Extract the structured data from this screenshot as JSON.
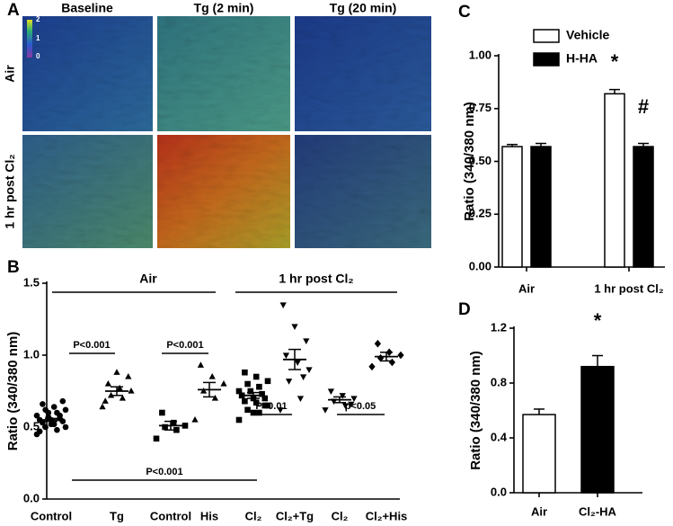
{
  "panel_a": {
    "label": "A",
    "columns": [
      "Baseline",
      "Tg (2 min)",
      "Tg (20 min)"
    ],
    "rows": [
      "Air",
      "1 hr post Cl₂"
    ],
    "colorbar_ticks": [
      2,
      1,
      0
    ]
  },
  "chart_data": [
    {
      "type": "scatter",
      "panel": "B",
      "ylabel": "Ratio (340/380 nm)",
      "categories": [
        "Control",
        "Tg",
        "Control",
        "His",
        "Cl₂",
        "Cl₂+Tg",
        "Cl₂",
        "Cl₂+His"
      ],
      "markers": [
        "circle",
        "triangle",
        "square",
        "triangle",
        "square",
        "triangle-down",
        "triangle-down",
        "diamond"
      ],
      "color": "#000000",
      "points": [
        [
          0.45,
          0.48,
          0.5,
          0.5,
          0.52,
          0.53,
          0.54,
          0.55,
          0.55,
          0.56,
          0.57,
          0.58,
          0.6,
          0.62,
          0.62,
          0.64,
          0.66,
          0.68,
          0.52,
          0.47,
          0.58,
          0.6
        ],
        [
          0.64,
          0.7,
          0.72,
          0.75,
          0.77,
          0.8,
          0.85,
          0.88,
          0.68
        ],
        [
          0.42,
          0.48,
          0.5,
          0.51,
          0.53,
          0.6
        ],
        [
          0.55,
          0.7,
          0.75,
          0.8,
          0.85,
          0.93
        ],
        [
          0.55,
          0.6,
          0.62,
          0.65,
          0.67,
          0.68,
          0.7,
          0.7,
          0.72,
          0.73,
          0.75,
          0.75,
          0.78,
          0.8,
          0.82,
          0.85,
          0.88,
          0.65,
          0.6,
          0.72
        ],
        [
          0.62,
          0.7,
          0.82,
          0.9,
          0.95,
          1.0,
          1.1,
          1.2,
          1.35,
          0.85
        ],
        [
          0.62,
          0.65,
          0.68,
          0.7,
          0.72,
          0.75,
          0.66
        ],
        [
          0.92,
          0.95,
          0.98,
          1.0,
          1.02,
          1.08
        ]
      ],
      "values": [
        0.55,
        0.75,
        0.51,
        0.76,
        0.72,
        0.97,
        0.69,
        0.99
      ],
      "errors": [
        0.01,
        0.03,
        0.03,
        0.05,
        0.02,
        0.07,
        0.02,
        0.03
      ],
      "ylim": [
        0,
        1.5
      ],
      "yticks": [
        {
          "value": 0,
          "label": "0.0"
        },
        {
          "value": 0.5,
          "label": "0.5"
        },
        {
          "value": 1,
          "label": "1.0"
        },
        {
          "value": 1.5,
          "label": "1.5"
        }
      ],
      "annotations": [
        "Air",
        "1 hr post Cl₂",
        "P<0.001",
        "P<0.001",
        "P<0.01",
        "p<0.05",
        "P<0.001"
      ]
    },
    {
      "type": "bar",
      "panel": "C",
      "ylabel": "Ratio (340/380 nm)",
      "categories": [
        "Air",
        "1 hr post Cl₂"
      ],
      "series": [
        {
          "name": "Vehicle",
          "color": "#ffffff",
          "values": [
            0.57,
            0.82
          ],
          "errors": [
            0.01,
            0.02
          ]
        },
        {
          "name": "H-HA",
          "color": "#000000",
          "values": [
            0.57,
            0.57
          ],
          "errors": [
            0.015,
            0.015
          ]
        }
      ],
      "ylim": [
        0,
        1.0
      ],
      "yticks": [
        {
          "value": 0,
          "label": "0.00"
        },
        {
          "value": 0.25,
          "label": "0.25"
        },
        {
          "value": 0.5,
          "label": "0.50"
        },
        {
          "value": 0.75,
          "label": "0.75"
        },
        {
          "value": 1.0,
          "label": "1.00"
        }
      ],
      "annotations": [
        "*",
        "#"
      ]
    },
    {
      "type": "bar",
      "panel": "D",
      "ylabel": "Ratio (340/380 nm)",
      "categories": [
        "Air",
        "Cl₂-HA"
      ],
      "series": [
        {
          "colors": [
            "#ffffff",
            "#000000"
          ],
          "values": [
            0.57,
            0.92
          ],
          "errors": [
            0.04,
            0.08
          ]
        }
      ],
      "ylim": [
        0,
        1.2
      ],
      "yticks": [
        {
          "value": 0,
          "label": "0.0"
        },
        {
          "value": 0.4,
          "label": "0.4"
        },
        {
          "value": 0.8,
          "label": "0.8"
        },
        {
          "value": 1.2,
          "label": "1.2"
        }
      ],
      "annotations": [
        "*"
      ]
    }
  ]
}
